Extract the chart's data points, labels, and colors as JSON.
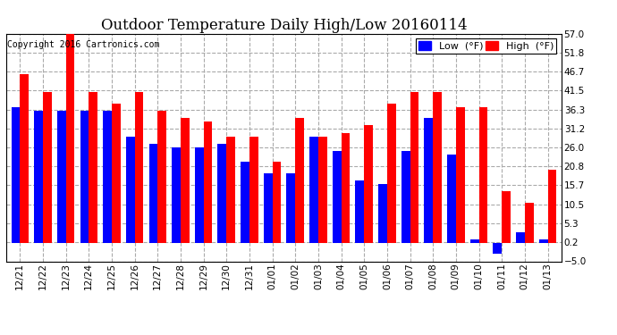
{
  "title": "Outdoor Temperature Daily High/Low 20160114",
  "copyright": "Copyright 2016 Cartronics.com",
  "legend_low": "Low  (°F)",
  "legend_high": "High  (°F)",
  "low_color": "#0000FF",
  "high_color": "#FF0000",
  "background_color": "#FFFFFF",
  "grid_color": "#AAAAAA",
  "ylim": [
    -5.0,
    57.0
  ],
  "yticks": [
    -5.0,
    0.2,
    5.3,
    10.5,
    15.7,
    20.8,
    26.0,
    31.2,
    36.3,
    41.5,
    46.7,
    51.8,
    57.0
  ],
  "labels": [
    "12/21",
    "12/22",
    "12/23",
    "12/24",
    "12/25",
    "12/26",
    "12/27",
    "12/28",
    "12/29",
    "12/30",
    "12/31",
    "01/01",
    "01/02",
    "01/03",
    "01/04",
    "01/05",
    "01/06",
    "01/07",
    "01/08",
    "01/09",
    "01/10",
    "01/11",
    "01/12",
    "01/13"
  ],
  "low": [
    37,
    36,
    36,
    36,
    36,
    29,
    27,
    26,
    26,
    27,
    22,
    19,
    19,
    29,
    25,
    17,
    16,
    25,
    34,
    24,
    1,
    -3,
    3,
    1
  ],
  "high": [
    46,
    41,
    58,
    41,
    38,
    41,
    36,
    34,
    33,
    29,
    29,
    22,
    34,
    29,
    30,
    32,
    38,
    41,
    41,
    37,
    37,
    14,
    11,
    20
  ],
  "title_fontsize": 12,
  "tick_fontsize": 7.5,
  "copyright_fontsize": 7,
  "legend_fontsize": 8,
  "bar_width": 0.38
}
